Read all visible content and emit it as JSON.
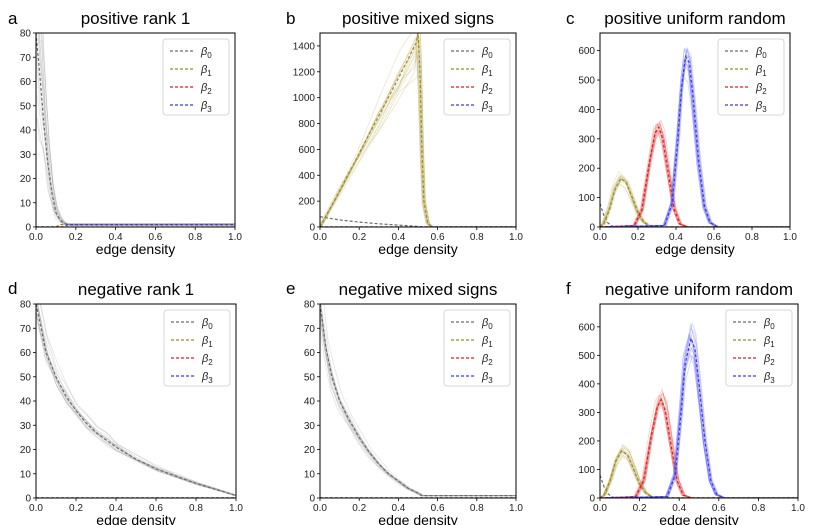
{
  "colors": {
    "beta0": "#6b6b6b",
    "beta1": "#9a8a2a",
    "beta2": "#d62020",
    "beta3": "#3a3ae8",
    "beta0_fill": "#9a9a9a",
    "beta1_fill": "#b5a64a",
    "beta2_fill": "#e85050",
    "beta3_fill": "#6060ff"
  },
  "chart_data": [
    {
      "label": "a",
      "title": "positive rank 1",
      "type": "line",
      "xlabel": "edge density",
      "xlim": [
        0,
        1
      ],
      "ylim": [
        0,
        80
      ],
      "xticks": [
        "0.0",
        "0.2",
        "0.4",
        "0.6",
        "0.8",
        "1.0"
      ],
      "yticks": [
        0,
        10,
        20,
        30,
        40,
        50,
        60,
        70,
        80
      ],
      "legend": [
        "β0",
        "β1",
        "β2",
        "β3"
      ],
      "legend_position": "top-right",
      "series": [
        {
          "key": "beta0",
          "spread": 0.5,
          "points": [
            [
              0,
              80
            ],
            [
              0.02,
              62
            ],
            [
              0.04,
              42
            ],
            [
              0.06,
              26
            ],
            [
              0.08,
              14
            ],
            [
              0.1,
              6
            ],
            [
              0.12,
              3
            ],
            [
              0.14,
              1.5
            ],
            [
              0.16,
              1
            ],
            [
              1.0,
              1
            ]
          ]
        },
        {
          "key": "beta1",
          "spread": 0,
          "points": [
            [
              0,
              0
            ],
            [
              0.1,
              0
            ],
            [
              0.12,
              1
            ],
            [
              1.0,
              1
            ]
          ]
        },
        {
          "key": "beta2",
          "spread": 0,
          "points": [
            [
              0,
              0
            ],
            [
              1.0,
              0
            ]
          ]
        },
        {
          "key": "beta3",
          "spread": 0,
          "points": [
            [
              0,
              0
            ],
            [
              0.14,
              0
            ],
            [
              0.16,
              1
            ],
            [
              1.0,
              1
            ]
          ]
        }
      ]
    },
    {
      "label": "b",
      "title": "positive mixed signs",
      "type": "line",
      "xlabel": "edge density",
      "xlim": [
        0,
        1
      ],
      "ylim": [
        0,
        1500
      ],
      "xticks": [
        "0.0",
        "0.2",
        "0.4",
        "0.6",
        "0.8",
        "1.0"
      ],
      "yticks": [
        0,
        200,
        400,
        600,
        800,
        1000,
        1200,
        1400
      ],
      "legend": [
        "β0",
        "β1",
        "β2",
        "β3"
      ],
      "legend_position": "top-right",
      "series": [
        {
          "key": "beta0",
          "spread": 0,
          "points": [
            [
              0,
              80
            ],
            [
              0.1,
              55
            ],
            [
              0.2,
              38
            ],
            [
              0.3,
              25
            ],
            [
              0.4,
              15
            ],
            [
              0.5,
              5
            ],
            [
              0.52,
              1
            ],
            [
              1.0,
              1
            ]
          ]
        },
        {
          "key": "beta1",
          "spread": 0.2,
          "points": [
            [
              0,
              0
            ],
            [
              0.1,
              280
            ],
            [
              0.2,
              570
            ],
            [
              0.3,
              860
            ],
            [
              0.4,
              1150
            ],
            [
              0.49,
              1420
            ],
            [
              0.5,
              1500
            ],
            [
              0.51,
              1200
            ],
            [
              0.52,
              600
            ],
            [
              0.53,
              200
            ],
            [
              0.55,
              30
            ],
            [
              0.57,
              0
            ],
            [
              1.0,
              0
            ]
          ]
        },
        {
          "key": "beta2",
          "spread": 0,
          "points": [
            [
              0,
              0
            ],
            [
              1.0,
              0
            ]
          ]
        },
        {
          "key": "beta3",
          "spread": 0,
          "points": [
            [
              0,
              0
            ],
            [
              1.0,
              0
            ]
          ]
        }
      ]
    },
    {
      "label": "c",
      "title": "positive uniform random",
      "type": "line",
      "xlabel": "edge density",
      "xlim": [
        0,
        1
      ],
      "ylim": [
        0,
        660
      ],
      "xticks": [
        "0.0",
        "0.2",
        "0.4",
        "0.6",
        "0.8",
        "1.0"
      ],
      "yticks": [
        0,
        100,
        200,
        300,
        400,
        500,
        600
      ],
      "legend": [
        "β0",
        "β1",
        "β2",
        "β3"
      ],
      "legend_position": "top-right",
      "series": [
        {
          "key": "beta0",
          "spread": 0,
          "points": [
            [
              0,
              80
            ],
            [
              0.02,
              40
            ],
            [
              0.04,
              15
            ],
            [
              0.06,
              4
            ],
            [
              0.08,
              1
            ],
            [
              1.0,
              1
            ]
          ]
        },
        {
          "key": "beta1",
          "spread": 0.15,
          "points": [
            [
              0,
              0
            ],
            [
              0.02,
              10
            ],
            [
              0.05,
              60
            ],
            [
              0.08,
              130
            ],
            [
              0.11,
              165
            ],
            [
              0.14,
              150
            ],
            [
              0.17,
              100
            ],
            [
              0.2,
              50
            ],
            [
              0.23,
              18
            ],
            [
              0.26,
              4
            ],
            [
              0.3,
              0
            ],
            [
              1.0,
              0
            ]
          ]
        },
        {
          "key": "beta2",
          "spread": 0.12,
          "points": [
            [
              0,
              0
            ],
            [
              0.18,
              5
            ],
            [
              0.22,
              60
            ],
            [
              0.26,
              220
            ],
            [
              0.29,
              320
            ],
            [
              0.31,
              340
            ],
            [
              0.33,
              300
            ],
            [
              0.36,
              180
            ],
            [
              0.39,
              60
            ],
            [
              0.42,
              10
            ],
            [
              0.46,
              0
            ],
            [
              1.0,
              0
            ]
          ]
        },
        {
          "key": "beta3",
          "spread": 0.12,
          "points": [
            [
              0,
              0
            ],
            [
              0.34,
              5
            ],
            [
              0.38,
              80
            ],
            [
              0.41,
              300
            ],
            [
              0.43,
              480
            ],
            [
              0.45,
              580
            ],
            [
              0.47,
              560
            ],
            [
              0.49,
              440
            ],
            [
              0.52,
              220
            ],
            [
              0.55,
              70
            ],
            [
              0.58,
              15
            ],
            [
              0.62,
              0
            ],
            [
              1.0,
              0
            ]
          ]
        }
      ]
    },
    {
      "label": "d",
      "title": "negative rank 1",
      "type": "line",
      "xlabel": "edge density",
      "xlim": [
        0,
        1
      ],
      "ylim": [
        0,
        80
      ],
      "xticks": [
        "0.0",
        "0.2",
        "0.4",
        "0.6",
        "0.8",
        "1.0"
      ],
      "yticks": [
        0,
        10,
        20,
        30,
        40,
        50,
        60,
        70,
        80
      ],
      "legend": [
        "β0",
        "β1",
        "β2",
        "β3"
      ],
      "legend_position": "top-right",
      "series": [
        {
          "key": "beta0",
          "spread": 0.12,
          "points": [
            [
              0,
              80
            ],
            [
              0.05,
              60
            ],
            [
              0.1,
              50
            ],
            [
              0.15,
              42
            ],
            [
              0.2,
              36
            ],
            [
              0.25,
              31
            ],
            [
              0.3,
              27
            ],
            [
              0.35,
              24
            ],
            [
              0.4,
              21
            ],
            [
              0.5,
              16
            ],
            [
              0.6,
              12
            ],
            [
              0.7,
              9
            ],
            [
              0.8,
              6
            ],
            [
              0.9,
              3.5
            ],
            [
              1.0,
              1
            ]
          ]
        },
        {
          "key": "beta1",
          "spread": 0,
          "points": [
            [
              0,
              0
            ],
            [
              1.0,
              0
            ]
          ]
        },
        {
          "key": "beta2",
          "spread": 0,
          "points": [
            [
              0,
              0
            ],
            [
              1.0,
              0
            ]
          ]
        },
        {
          "key": "beta3",
          "spread": 0,
          "points": [
            [
              0,
              0
            ],
            [
              1.0,
              0
            ]
          ]
        }
      ]
    },
    {
      "label": "e",
      "title": "negative mixed signs",
      "type": "line",
      "xlabel": "edge density",
      "xlim": [
        0,
        1
      ],
      "ylim": [
        0,
        80
      ],
      "xticks": [
        "0.0",
        "0.2",
        "0.4",
        "0.6",
        "0.8",
        "1.0"
      ],
      "yticks": [
        0,
        10,
        20,
        30,
        40,
        50,
        60,
        70,
        80
      ],
      "legend": [
        "β0",
        "β1",
        "β2",
        "β3"
      ],
      "legend_position": "top-right",
      "series": [
        {
          "key": "beta0",
          "spread": 0.1,
          "points": [
            [
              0,
              80
            ],
            [
              0.03,
              62
            ],
            [
              0.06,
              50
            ],
            [
              0.1,
              40
            ],
            [
              0.15,
              32
            ],
            [
              0.2,
              25
            ],
            [
              0.25,
              19
            ],
            [
              0.3,
              14
            ],
            [
              0.35,
              10
            ],
            [
              0.4,
              7
            ],
            [
              0.45,
              4
            ],
            [
              0.5,
              2
            ],
            [
              0.52,
              1
            ],
            [
              1.0,
              1
            ]
          ]
        },
        {
          "key": "beta1",
          "spread": 0,
          "points": [
            [
              0,
              0
            ],
            [
              1.0,
              0
            ]
          ]
        },
        {
          "key": "beta2",
          "spread": 0,
          "points": [
            [
              0,
              0
            ],
            [
              1.0,
              0
            ]
          ]
        },
        {
          "key": "beta3",
          "spread": 0,
          "points": [
            [
              0,
              0
            ],
            [
              1.0,
              0
            ]
          ]
        }
      ]
    },
    {
      "label": "f",
      "title": "negative uniform random",
      "type": "line",
      "xlabel": "edge density",
      "xlim": [
        0,
        1
      ],
      "ylim": [
        0,
        680
      ],
      "xticks": [
        "0.0",
        "0.2",
        "0.4",
        "0.6",
        "0.8",
        "1.0"
      ],
      "yticks": [
        0,
        100,
        200,
        300,
        400,
        500,
        600
      ],
      "legend": [
        "β0",
        "β1",
        "β2",
        "β3"
      ],
      "legend_position": "top-right",
      "series": [
        {
          "key": "beta0",
          "spread": 0,
          "points": [
            [
              0,
              80
            ],
            [
              0.02,
              40
            ],
            [
              0.04,
              15
            ],
            [
              0.06,
              4
            ],
            [
              0.08,
              1
            ],
            [
              1.0,
              1
            ]
          ]
        },
        {
          "key": "beta1",
          "spread": 0.15,
          "points": [
            [
              0,
              0
            ],
            [
              0.02,
              10
            ],
            [
              0.05,
              60
            ],
            [
              0.08,
              130
            ],
            [
              0.11,
              165
            ],
            [
              0.14,
              150
            ],
            [
              0.17,
              100
            ],
            [
              0.2,
              50
            ],
            [
              0.23,
              18
            ],
            [
              0.26,
              4
            ],
            [
              0.3,
              0
            ],
            [
              1.0,
              0
            ]
          ]
        },
        {
          "key": "beta2",
          "spread": 0.12,
          "points": [
            [
              0,
              0
            ],
            [
              0.18,
              5
            ],
            [
              0.22,
              60
            ],
            [
              0.26,
              220
            ],
            [
              0.29,
              320
            ],
            [
              0.31,
              345
            ],
            [
              0.33,
              305
            ],
            [
              0.36,
              180
            ],
            [
              0.39,
              60
            ],
            [
              0.42,
              10
            ],
            [
              0.46,
              0
            ],
            [
              1.0,
              0
            ]
          ]
        },
        {
          "key": "beta3",
          "spread": 0.12,
          "points": [
            [
              0,
              0
            ],
            [
              0.34,
              5
            ],
            [
              0.38,
              80
            ],
            [
              0.41,
              300
            ],
            [
              0.43,
              470
            ],
            [
              0.46,
              560
            ],
            [
              0.48,
              520
            ],
            [
              0.5,
              400
            ],
            [
              0.53,
              200
            ],
            [
              0.56,
              60
            ],
            [
              0.59,
              12
            ],
            [
              0.63,
              0
            ],
            [
              1.0,
              0
            ]
          ]
        }
      ]
    }
  ]
}
